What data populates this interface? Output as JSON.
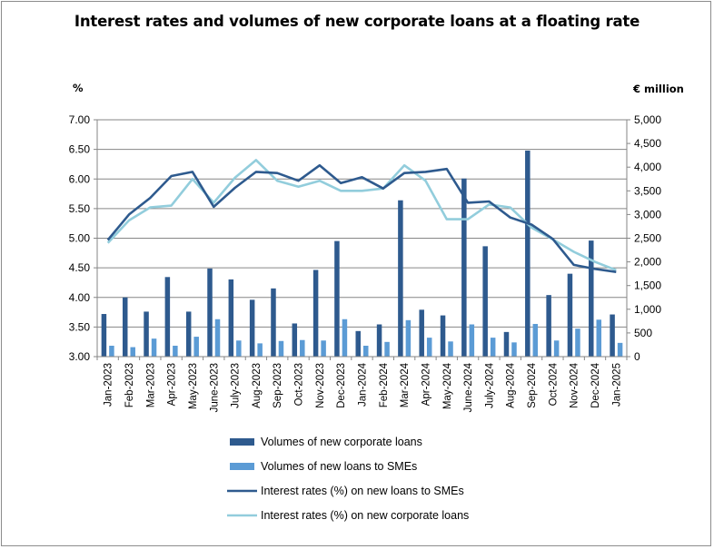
{
  "chart_data": {
    "type": "bar",
    "title": "Interest rates and volumes of new corporate loans at a  floating rate",
    "left_axis": {
      "label": "%",
      "ylim": [
        3.0,
        7.0
      ],
      "ticks": [
        "3.00",
        "3.50",
        "4.00",
        "4.50",
        "5.00",
        "5.50",
        "6.00",
        "6.50",
        "7.00"
      ]
    },
    "right_axis": {
      "label": "€ million",
      "ylim": [
        0,
        5000
      ],
      "ticks": [
        "0",
        "500",
        "1,000",
        "1,500",
        "2,000",
        "2,500",
        "3,000",
        "3,500",
        "4,000",
        "4,500",
        "5,000"
      ]
    },
    "categories": [
      "Jan-2023",
      "Feb-2023",
      "Mar-2023",
      "Apr-2023",
      "May-2023",
      "June-2023",
      "July-2023",
      "Aug-2023",
      "Sep-2023",
      "Oct-2023",
      "Nov-2023",
      "Dec-2023",
      "Jan-2024",
      "Feb-2024",
      "Mar-2024",
      "Apr-2024",
      "May-2024",
      "June-2024",
      "July-2024",
      "Aug-2024",
      "Sep-2024",
      "Oct-2024",
      "Nov-2024",
      "Dec-2024",
      "Jan-2025"
    ],
    "series": [
      {
        "name": "Volumes of new corporate loans",
        "kind": "bar",
        "axis": "right",
        "color": "#2e5a8e",
        "values": [
          900,
          1250,
          950,
          1680,
          950,
          1860,
          1630,
          1200,
          1440,
          700,
          1830,
          2440,
          540,
          680,
          3300,
          990,
          870,
          3760,
          2330,
          520,
          4350,
          1300,
          1750,
          2450,
          890
        ]
      },
      {
        "name": "Volumes of new loans to SMEs",
        "kind": "bar",
        "axis": "right",
        "color": "#5b9bd5",
        "values": [
          230,
          200,
          380,
          230,
          420,
          790,
          340,
          280,
          330,
          350,
          340,
          790,
          230,
          310,
          770,
          400,
          320,
          680,
          400,
          300,
          690,
          340,
          590,
          780,
          290
        ]
      },
      {
        "name": "Interest rates (%) on new loans to SMEs",
        "kind": "line",
        "axis": "left",
        "color": "#2e5a8e",
        "values": [
          4.97,
          5.4,
          5.68,
          6.05,
          6.12,
          5.53,
          5.85,
          6.12,
          6.1,
          5.97,
          6.23,
          5.93,
          6.03,
          5.84,
          6.1,
          6.12,
          6.17,
          5.6,
          5.62,
          5.35,
          5.23,
          4.99,
          4.55,
          4.48,
          4.43
        ]
      },
      {
        "name": "Interest rates (%) on new corporate loans",
        "kind": "line",
        "axis": "left",
        "color": "#92cddc",
        "values": [
          4.92,
          5.3,
          5.52,
          5.55,
          6.0,
          5.6,
          6.02,
          6.32,
          5.97,
          5.87,
          5.97,
          5.8,
          5.8,
          5.84,
          6.23,
          5.97,
          5.32,
          5.32,
          5.57,
          5.52,
          5.18,
          4.98,
          4.77,
          4.6,
          4.46
        ]
      }
    ],
    "legend_position": "bottom"
  }
}
